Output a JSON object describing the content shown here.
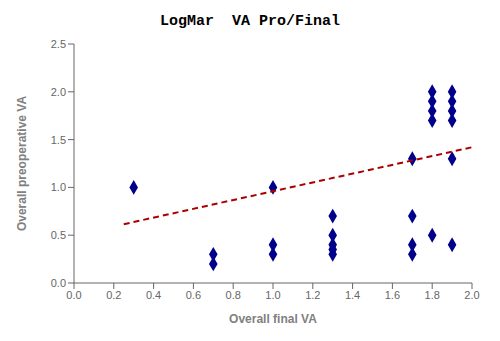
{
  "chart_data": {
    "type": "scatter",
    "title": "LogMar  VA Pro/Final",
    "x_label": "Overall final VA",
    "y_label": "Overall preoperative VA",
    "xlim": [
      0,
      2.0
    ],
    "ylim": [
      0,
      2.5
    ],
    "xticks": [
      {
        "value": 0,
        "label": "0.0"
      },
      0.2,
      0.4,
      0.6,
      0.8,
      {
        "value": 1.0,
        "label": "1.0"
      },
      1.2,
      1.4,
      1.6,
      1.8,
      {
        "value": 2.0,
        "label": "2.0"
      }
    ],
    "yticks": [
      {
        "value": 0,
        "label": "0.0"
      },
      0.5,
      {
        "value": 1.0,
        "label": "1.0"
      },
      1.5,
      {
        "value": 2.0,
        "label": "2.0"
      },
      2.5
    ],
    "grid": false,
    "series": [
      {
        "type": "scatter",
        "color": "#00008B",
        "marker": "diamond",
        "x": [
          0.3,
          0.7,
          0.7,
          1.0,
          1.0,
          1.0,
          1.3,
          1.3,
          1.3,
          1.3,
          1.3,
          1.7,
          1.7,
          1.7,
          1.7,
          1.8,
          1.8,
          1.8,
          1.8,
          1.8,
          1.9,
          1.9,
          1.9,
          1.9,
          1.9,
          1.9
        ],
        "values": [
          1.0,
          0.3,
          0.2,
          0.4,
          0.3,
          1.0,
          0.7,
          0.5,
          0.4,
          0.35,
          0.3,
          1.3,
          0.7,
          0.4,
          0.3,
          2.0,
          1.9,
          1.8,
          1.7,
          0.5,
          2.0,
          1.9,
          1.8,
          1.7,
          1.3,
          0.4
        ]
      },
      {
        "type": "line",
        "color": "#AA0000",
        "line_style": "dashed",
        "x": [
          0.25,
          2.0
        ],
        "values": [
          0.615,
          1.42
        ]
      }
    ]
  }
}
